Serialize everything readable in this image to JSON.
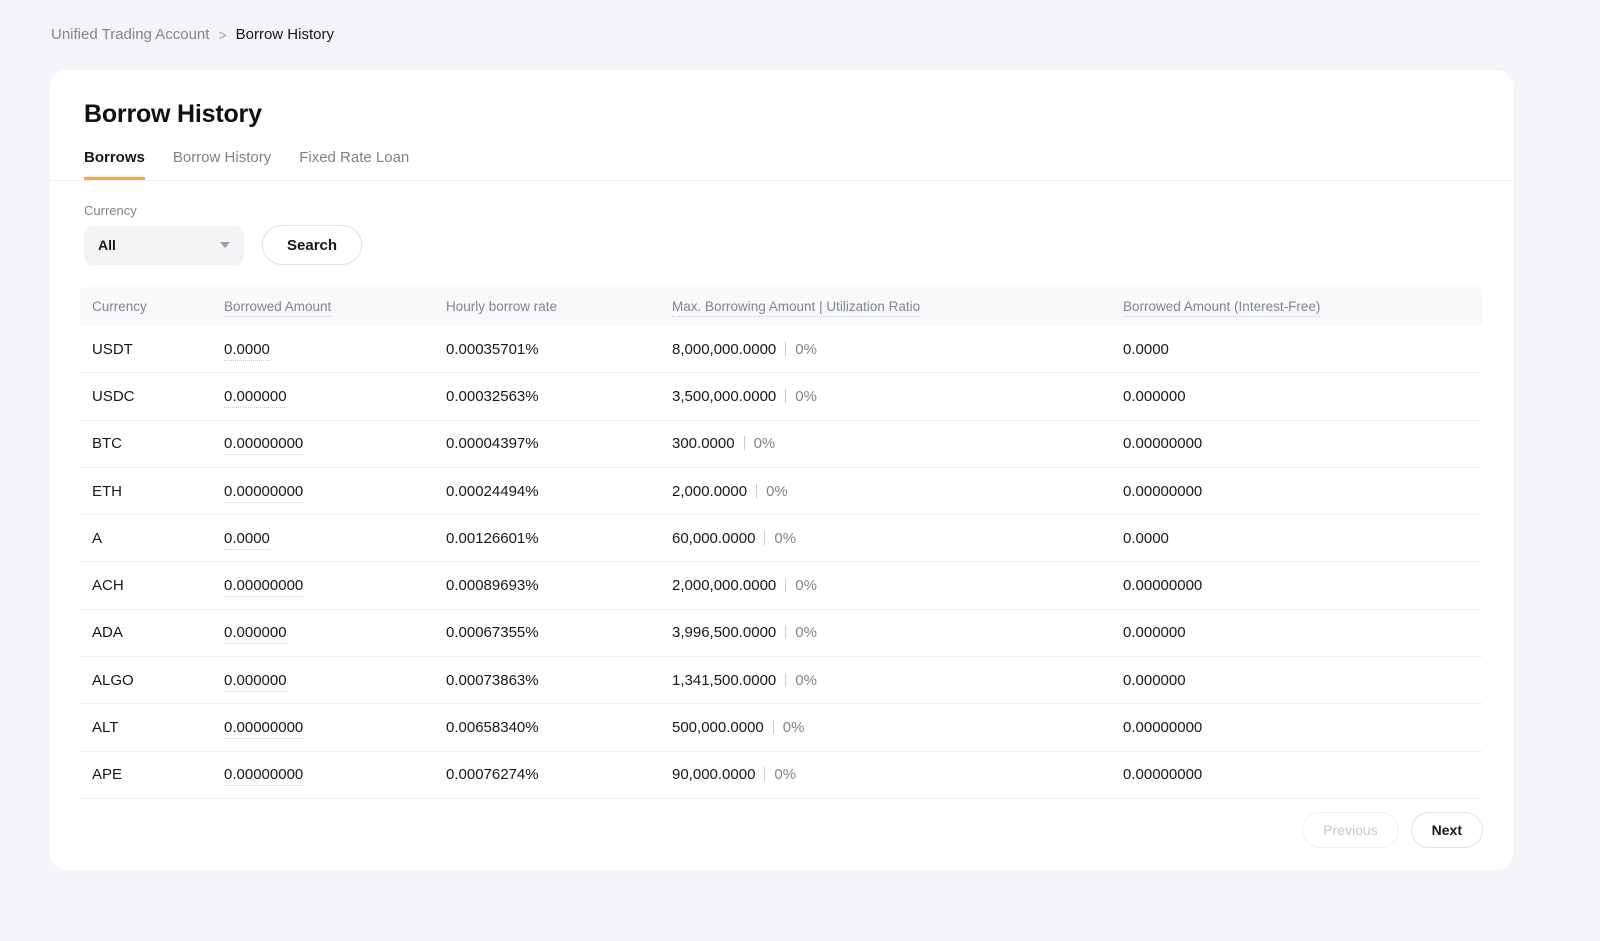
{
  "breadcrumb": {
    "parent": "Unified Trading Account",
    "separator": ">",
    "current": "Borrow History"
  },
  "page": {
    "title": "Borrow History"
  },
  "tabs": [
    {
      "label": "Borrows",
      "active": true
    },
    {
      "label": "Borrow History",
      "active": false
    },
    {
      "label": "Fixed Rate Loan",
      "active": false
    }
  ],
  "filters": {
    "currency_label": "Currency",
    "currency_selected": "All",
    "search_label": "Search"
  },
  "table": {
    "columns": [
      {
        "label": "Currency",
        "underlined": false
      },
      {
        "label": "Borrowed Amount",
        "underlined": true
      },
      {
        "label": "Hourly borrow rate",
        "underlined": false
      },
      {
        "label": "Max. Borrowing Amount | Utilization Ratio",
        "underlined": true
      },
      {
        "label": "Borrowed Amount (Interest-Free)",
        "underlined": true
      }
    ],
    "rows": [
      {
        "currency": "USDT",
        "borrowed_amount": "0.0000",
        "hourly_borrow_rate": "0.00035701%",
        "max_borrowing_amount": "8,000,000.0000",
        "utilization_ratio": "0%",
        "interest_free_amount": "0.0000"
      },
      {
        "currency": "USDC",
        "borrowed_amount": "0.000000",
        "hourly_borrow_rate": "0.00032563%",
        "max_borrowing_amount": "3,500,000.0000",
        "utilization_ratio": "0%",
        "interest_free_amount": "0.000000"
      },
      {
        "currency": "BTC",
        "borrowed_amount": "0.00000000",
        "hourly_borrow_rate": "0.00004397%",
        "max_borrowing_amount": "300.0000",
        "utilization_ratio": "0%",
        "interest_free_amount": "0.00000000"
      },
      {
        "currency": "ETH",
        "borrowed_amount": "0.00000000",
        "hourly_borrow_rate": "0.00024494%",
        "max_borrowing_amount": "2,000.0000",
        "utilization_ratio": "0%",
        "interest_free_amount": "0.00000000"
      },
      {
        "currency": "A",
        "borrowed_amount": "0.0000",
        "hourly_borrow_rate": "0.00126601%",
        "max_borrowing_amount": "60,000.0000",
        "utilization_ratio": "0%",
        "interest_free_amount": "0.0000"
      },
      {
        "currency": "ACH",
        "borrowed_amount": "0.00000000",
        "hourly_borrow_rate": "0.00089693%",
        "max_borrowing_amount": "2,000,000.0000",
        "utilization_ratio": "0%",
        "interest_free_amount": "0.00000000"
      },
      {
        "currency": "ADA",
        "borrowed_amount": "0.000000",
        "hourly_borrow_rate": "0.00067355%",
        "max_borrowing_amount": "3,996,500.0000",
        "utilization_ratio": "0%",
        "interest_free_amount": "0.000000"
      },
      {
        "currency": "ALGO",
        "borrowed_amount": "0.000000",
        "hourly_borrow_rate": "0.00073863%",
        "max_borrowing_amount": "1,341,500.0000",
        "utilization_ratio": "0%",
        "interest_free_amount": "0.000000"
      },
      {
        "currency": "ALT",
        "borrowed_amount": "0.00000000",
        "hourly_borrow_rate": "0.00658340%",
        "max_borrowing_amount": "500,000.0000",
        "utilization_ratio": "0%",
        "interest_free_amount": "0.00000000"
      },
      {
        "currency": "APE",
        "borrowed_amount": "0.00000000",
        "hourly_borrow_rate": "0.00076274%",
        "max_borrowing_amount": "90,000.0000",
        "utilization_ratio": "0%",
        "interest_free_amount": "0.00000000"
      }
    ]
  },
  "pagination": {
    "previous_label": "Previous",
    "next_label": "Next"
  },
  "colors": {
    "accent_orange": "#f7a54b",
    "page_background": "#f4f5f8",
    "muted_text": "#81858c",
    "dark_text": "#17181c"
  }
}
